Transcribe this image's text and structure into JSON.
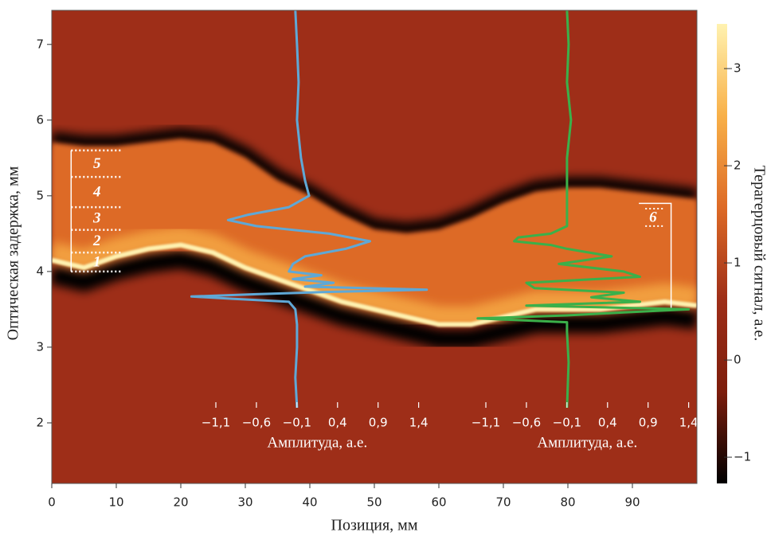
{
  "chart_data": {
    "type": "heatmap",
    "xlabel": "Позиция, мм",
    "ylabel": "Оптическая задержка, мм",
    "xlim": [
      0,
      100
    ],
    "xticks": [
      0,
      10,
      20,
      30,
      40,
      50,
      60,
      70,
      80,
      90
    ],
    "ylim": [
      1.2,
      7.45
    ],
    "yticks": [
      2,
      3,
      4,
      5,
      6,
      7
    ],
    "colorbar": {
      "label": "Терагерцовый сигнал, а.е.",
      "lim": [
        -1.27,
        3.46
      ],
      "ticks": [
        {
          "value": -1,
          "label": "−1"
        },
        0,
        1,
        2,
        3
      ],
      "colormap": [
        "#000000",
        "#7d1d0c",
        "#9e2e18",
        "#dd6a26",
        "#f8b048",
        "#fff2b0"
      ]
    },
    "surface": {
      "x": [
        0,
        5,
        10,
        15,
        20,
        25,
        30,
        35,
        40,
        45,
        50,
        55,
        60,
        65,
        70,
        75,
        80,
        85,
        90,
        95,
        100
      ],
      "top": [
        5.7,
        5.65,
        5.65,
        5.7,
        5.75,
        5.7,
        5.5,
        5.2,
        5.0,
        4.75,
        4.55,
        4.5,
        4.55,
        4.7,
        4.9,
        5.05,
        5.1,
        5.1,
        5.05,
        5.0,
        4.95
      ],
      "bottom": [
        4.15,
        4.05,
        4.2,
        4.3,
        4.35,
        4.25,
        4.05,
        3.9,
        3.75,
        3.6,
        3.5,
        3.4,
        3.3,
        3.3,
        3.4,
        3.5,
        3.5,
        3.5,
        3.55,
        3.6,
        3.55
      ]
    },
    "layers": {
      "labels": [
        "1",
        "2",
        "3",
        "4",
        "5"
      ],
      "bounds": [
        4.0,
        4.25,
        4.55,
        4.85,
        5.25,
        5.6
      ],
      "xrange": [
        3,
        11
      ]
    },
    "layer6": {
      "label": "6",
      "bounds": [
        4.6,
        4.83
      ],
      "bracket": [
        3.5,
        4.9
      ]
    },
    "profiles": [
      {
        "color": "#5fa8d6",
        "xlabel": "Амплитуда, а.е.",
        "xlim": [
          -1.1,
          1.6
        ],
        "xticks": [
          {
            "value": -1.1,
            "label": "−1,1"
          },
          {
            "value": -0.6,
            "label": "−0,6"
          },
          {
            "value": -0.1,
            "label": "−0,1"
          },
          {
            "value": 0.4,
            "label": "0,4"
          },
          {
            "value": 0.9,
            "label": "0,9"
          },
          {
            "value": 1.4,
            "label": "1,4"
          }
        ],
        "delay": [
          7.45,
          7.0,
          6.5,
          6.0,
          5.5,
          5.2,
          5.0,
          4.85,
          4.75,
          4.68,
          4.6,
          4.5,
          4.4,
          4.3,
          4.2,
          4.1,
          4.0,
          3.95,
          3.9,
          3.85,
          3.8,
          3.76,
          3.73,
          3.7,
          3.67,
          3.64,
          3.6,
          3.5,
          3.3,
          3.0,
          2.6,
          2.2
        ],
        "values": [
          -0.12,
          -0.1,
          -0.08,
          -0.1,
          -0.05,
          0.0,
          0.05,
          -0.2,
          -0.7,
          -0.95,
          -0.6,
          0.3,
          0.8,
          0.5,
          0.0,
          -0.15,
          -0.2,
          0.2,
          -0.15,
          0.35,
          0.0,
          1.5,
          0.3,
          -0.6,
          -1.4,
          -0.9,
          -0.2,
          -0.12,
          -0.1,
          -0.1,
          -0.12,
          -0.1
        ]
      },
      {
        "color": "#3bb04a",
        "xlabel": "Амплитуда, а.е.",
        "xlim": [
          -1.1,
          1.6
        ],
        "xticks": [
          {
            "value": -1.1,
            "label": "−1,1"
          },
          {
            "value": -0.6,
            "label": "−0,6"
          },
          {
            "value": -0.1,
            "label": "−0,1"
          },
          {
            "value": 0.4,
            "label": "0,4"
          },
          {
            "value": 0.9,
            "label": "0,9"
          },
          {
            "value": 1.4,
            "label": "1,4"
          }
        ],
        "delay": [
          7.45,
          7.0,
          6.5,
          6.0,
          5.5,
          5.0,
          4.6,
          4.5,
          4.45,
          4.4,
          4.35,
          4.3,
          4.2,
          4.1,
          4.0,
          3.93,
          3.85,
          3.78,
          3.72,
          3.66,
          3.6,
          3.55,
          3.5,
          3.46,
          3.42,
          3.38,
          3.33,
          3.2,
          2.8,
          2.2
        ],
        "values": [
          -0.1,
          -0.08,
          -0.1,
          -0.05,
          -0.1,
          -0.1,
          -0.1,
          -0.3,
          -0.7,
          -0.75,
          -0.3,
          -0.1,
          0.45,
          -0.2,
          0.6,
          0.8,
          -0.6,
          -0.5,
          0.6,
          0.2,
          0.8,
          -0.6,
          1.4,
          0.6,
          -0.1,
          -1.2,
          -0.1,
          -0.1,
          -0.08,
          -0.1
        ]
      }
    ]
  }
}
